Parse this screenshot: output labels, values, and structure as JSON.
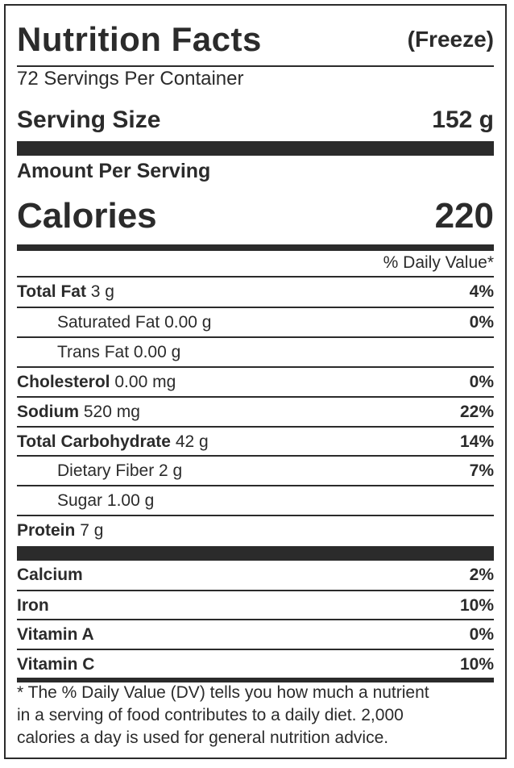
{
  "header": {
    "title": "Nutrition Facts",
    "flavor": "(Freeze)"
  },
  "servings_per_container": "72 Servings Per Container",
  "serving_size": {
    "label": "Serving Size",
    "value": "152 g"
  },
  "amount_per_serving": "Amount Per Serving",
  "calories": {
    "label": "Calories",
    "value": "220"
  },
  "daily_value_header": "% Daily Value*",
  "nutrients": [
    {
      "name": "Total Fat",
      "amount": "3 g",
      "dv": "4%"
    },
    {
      "name": "Saturated Fat",
      "amount": "0.00 g",
      "dv": "0%"
    },
    {
      "name": "Trans Fat",
      "amount": "0.00 g",
      "dv": ""
    },
    {
      "name": "Cholesterol",
      "amount": "0.00 mg",
      "dv": "0%"
    },
    {
      "name": "Sodium",
      "amount": "520 mg",
      "dv": "22%"
    },
    {
      "name": "Total Carbohydrate",
      "amount": "42 g",
      "dv": "14%"
    },
    {
      "name": "Dietary Fiber",
      "amount": "2 g",
      "dv": "7%"
    },
    {
      "name": "Sugar",
      "amount": "1.00 g",
      "dv": ""
    },
    {
      "name": "Protein",
      "amount": "7 g",
      "dv": ""
    }
  ],
  "vitamins": [
    {
      "name": "Calcium",
      "dv": "2%"
    },
    {
      "name": "Iron",
      "dv": "10%"
    },
    {
      "name": "Vitamin A",
      "dv": "0%"
    },
    {
      "name": "Vitamin C",
      "dv": "10%"
    }
  ],
  "footnote": [
    "* The % Daily Value (DV) tells you how much a nutrient",
    "in a serving of food contributes to a daily diet. 2,000",
    "calories a day is used for general nutrition advice."
  ]
}
